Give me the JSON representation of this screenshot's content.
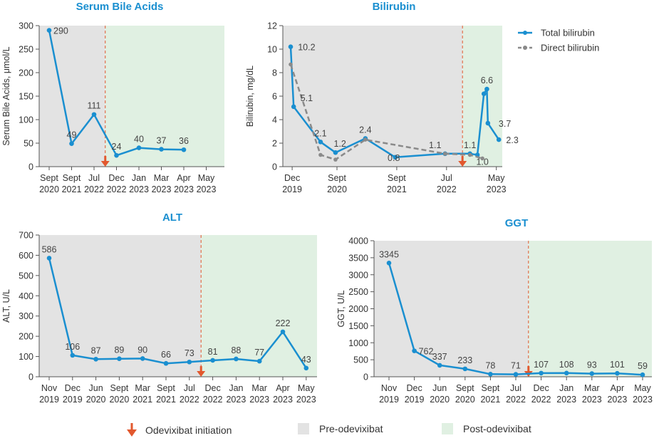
{
  "colors": {
    "series": "#1a8fd0",
    "direct": "#8a8a8a",
    "pre_bg": "#e3e3e3",
    "post_bg": "#e0f0e2",
    "initiation": "#e2582e",
    "title": "#1a8fd0"
  },
  "legend": {
    "initiation": "Odevixibat initiation",
    "pre": "Pre-odevixibat",
    "post": "Post-odevixibat"
  },
  "chart_data": [
    {
      "id": "sba",
      "type": "line",
      "title": "Serum Bile Acids",
      "ylabel": "Serum Bile Acids, μmol/L",
      "ylim": [
        0,
        300
      ],
      "yticks": [
        0,
        50,
        100,
        150,
        200,
        250,
        300
      ],
      "categories": [
        "Sept\n2020",
        "Sept\n2021",
        "Jul\n2022",
        "Dec\n2022",
        "Jan\n2023",
        "Mar\n2023",
        "Apr\n2023",
        "May\n2023"
      ],
      "series": [
        {
          "name": "Serum bile acids",
          "style": "solid",
          "points": [
            [
              0,
              290
            ],
            [
              1,
              49
            ],
            [
              2,
              111
            ],
            [
              3,
              24
            ],
            [
              4,
              40
            ],
            [
              5,
              37
            ],
            [
              6,
              36
            ]
          ]
        }
      ],
      "labels": [
        {
          "x": 0,
          "y": 290,
          "text": "290",
          "pos": "right"
        },
        {
          "x": 1,
          "y": 49,
          "text": "49",
          "pos": "above"
        },
        {
          "x": 2,
          "y": 111,
          "text": "111",
          "pos": "above"
        },
        {
          "x": 3,
          "y": 24,
          "text": "24",
          "pos": "above"
        },
        {
          "x": 4,
          "y": 40,
          "text": "40",
          "pos": "above"
        },
        {
          "x": 5,
          "y": 37,
          "text": "37",
          "pos": "above"
        },
        {
          "x": 6,
          "y": 36,
          "text": "36",
          "pos": "above"
        }
      ],
      "initiation_x": 2.5,
      "post_from_x": 2.5
    },
    {
      "id": "bili",
      "type": "line",
      "title": "Bilirubin",
      "ylabel": "Bilirubin, mg/dL",
      "ylim": [
        0,
        12
      ],
      "yticks": [
        0,
        2,
        4,
        6,
        8,
        10,
        12
      ],
      "xlim": [
        0,
        42.2
      ],
      "xticks": [
        {
          "x": 0.3,
          "label": "Dec\n2019"
        },
        {
          "x": 9.3,
          "label": "Sept\n2020"
        },
        {
          "x": 21.3,
          "label": "Sept\n2021"
        },
        {
          "x": 31.3,
          "label": "Jul\n2022"
        },
        {
          "x": 41.3,
          "label": "May\n2023"
        }
      ],
      "series": [
        {
          "name": "Total bilirubin",
          "style": "solid",
          "points": [
            [
              0,
              10.2
            ],
            [
              0.6,
              5.1
            ],
            [
              6,
              2.1
            ],
            [
              9,
              1.2
            ],
            [
              15,
              2.4
            ],
            [
              21,
              0.8
            ],
            [
              31,
              1.1
            ],
            [
              36,
              1.1
            ],
            [
              37.5,
              1.0
            ],
            [
              38.8,
              6.2
            ],
            [
              39.4,
              6.6
            ],
            [
              39.6,
              3.7
            ],
            [
              41.8,
              2.3
            ]
          ]
        },
        {
          "name": "Direct bilirubin",
          "style": "dashed",
          "points": [
            [
              0,
              8.7
            ],
            [
              6,
              1.0
            ],
            [
              9,
              0.6
            ],
            [
              15,
              2.3
            ],
            [
              31,
              1.1
            ],
            [
              36,
              1.0
            ],
            [
              38.5,
              0.7
            ]
          ]
        }
      ],
      "labels": [
        {
          "x": 0.6,
          "y": 10.2,
          "text": "10.2",
          "pos": "right"
        },
        {
          "x": 3.2,
          "y": 5.1,
          "text": "5.1",
          "pos": "above"
        },
        {
          "x": 6,
          "y": 2.1,
          "text": "2.1",
          "pos": "above"
        },
        {
          "x": 9.9,
          "y": 1.2,
          "text": "1.2",
          "pos": "above"
        },
        {
          "x": 15,
          "y": 2.4,
          "text": "2.4",
          "pos": "above"
        },
        {
          "x": 18.6,
          "y": 0.8,
          "text": "0.8",
          "pos": "right"
        },
        {
          "x": 29,
          "y": 1.1,
          "text": "1.1",
          "pos": "above"
        },
        {
          "x": 36,
          "y": 1.1,
          "text": "1.1",
          "pos": "above"
        },
        {
          "x": 36.4,
          "y": 0.45,
          "text": "1.0",
          "pos": "right"
        },
        {
          "x": 39.4,
          "y": 6.6,
          "text": "6.6",
          "pos": "above"
        },
        {
          "x": 40.9,
          "y": 3.7,
          "text": "3.7",
          "pos": "right"
        },
        {
          "x": 42.4,
          "y": 2.3,
          "text": "2.3",
          "pos": "right"
        }
      ],
      "initiation_x": 34.5,
      "post_from_x": 34.5,
      "legend": [
        "Total bilirubin",
        "Direct bilirubin"
      ]
    },
    {
      "id": "alt",
      "type": "line",
      "title": "ALT",
      "ylabel": "ALT, U/L",
      "ylim": [
        0,
        700
      ],
      "yticks": [
        0,
        100,
        200,
        300,
        400,
        500,
        600,
        700
      ],
      "categories": [
        "Nov\n2019",
        "Dec\n2019",
        "Jun\n2020",
        "Sept\n2020",
        "Mar\n2021",
        "Sept\n2021",
        "Jul\n2022",
        "Dec\n2022",
        "Jan\n2023",
        "Mar\n2023",
        "Apr\n2023",
        "May\n2023"
      ],
      "series": [
        {
          "name": "ALT",
          "style": "solid",
          "points": [
            [
              0,
              586
            ],
            [
              1,
              106
            ],
            [
              2,
              87
            ],
            [
              3,
              89
            ],
            [
              4,
              90
            ],
            [
              5,
              66
            ],
            [
              6,
              73
            ],
            [
              7,
              81
            ],
            [
              8,
              88
            ],
            [
              9,
              77
            ],
            [
              10,
              222
            ],
            [
              11,
              43
            ]
          ]
        }
      ],
      "labels": [
        {
          "x": 0,
          "y": 586,
          "text": "586",
          "pos": "above"
        },
        {
          "x": 1,
          "y": 106,
          "text": "106",
          "pos": "above"
        },
        {
          "x": 2,
          "y": 87,
          "text": "87",
          "pos": "above"
        },
        {
          "x": 3,
          "y": 89,
          "text": "89",
          "pos": "above"
        },
        {
          "x": 4,
          "y": 90,
          "text": "90",
          "pos": "above"
        },
        {
          "x": 5,
          "y": 66,
          "text": "66",
          "pos": "above"
        },
        {
          "x": 6,
          "y": 73,
          "text": "73",
          "pos": "above"
        },
        {
          "x": 7,
          "y": 81,
          "text": "81",
          "pos": "above"
        },
        {
          "x": 8,
          "y": 88,
          "text": "88",
          "pos": "above"
        },
        {
          "x": 9,
          "y": 77,
          "text": "77",
          "pos": "above"
        },
        {
          "x": 10,
          "y": 222,
          "text": "222",
          "pos": "above"
        },
        {
          "x": 11,
          "y": 43,
          "text": "43",
          "pos": "above"
        }
      ],
      "initiation_x": 6.5,
      "post_from_x": 6.5
    },
    {
      "id": "ggt",
      "type": "line",
      "title": "GGT",
      "ylabel": "GGT, U/L",
      "ylim": [
        0,
        4000
      ],
      "yticks": [
        0,
        500,
        1000,
        1500,
        2000,
        2500,
        3000,
        3500,
        4000
      ],
      "categories": [
        "Nov\n2019",
        "Dec\n2019",
        "Jun\n2020",
        "Sept\n2020",
        "Sept\n2021",
        "Jul\n2022",
        "Dec\n2022",
        "Jan\n2023",
        "Mar\n2023",
        "Apr\n2023",
        "May\n2023"
      ],
      "series": [
        {
          "name": "GGT",
          "style": "solid",
          "points": [
            [
              0,
              3345
            ],
            [
              1,
              762
            ],
            [
              2,
              337
            ],
            [
              3,
              233
            ],
            [
              4,
              78
            ],
            [
              5,
              71
            ],
            [
              6,
              107
            ],
            [
              7,
              108
            ],
            [
              8,
              93
            ],
            [
              9,
              101
            ],
            [
              10,
              59
            ]
          ]
        }
      ],
      "labels": [
        {
          "x": 0,
          "y": 3345,
          "text": "3345",
          "pos": "above"
        },
        {
          "x": 1,
          "y": 762,
          "text": "762",
          "pos": "right"
        },
        {
          "x": 2,
          "y": 337,
          "text": "337",
          "pos": "above"
        },
        {
          "x": 3,
          "y": 233,
          "text": "233",
          "pos": "above"
        },
        {
          "x": 4,
          "y": 78,
          "text": "78",
          "pos": "above"
        },
        {
          "x": 5,
          "y": 71,
          "text": "71",
          "pos": "above"
        },
        {
          "x": 6,
          "y": 107,
          "text": "107",
          "pos": "above"
        },
        {
          "x": 7,
          "y": 108,
          "text": "108",
          "pos": "above"
        },
        {
          "x": 8,
          "y": 93,
          "text": "93",
          "pos": "above"
        },
        {
          "x": 9,
          "y": 101,
          "text": "101",
          "pos": "above"
        },
        {
          "x": 10,
          "y": 59,
          "text": "59",
          "pos": "above"
        }
      ],
      "initiation_x": 5.5,
      "post_from_x": 5.5
    }
  ]
}
